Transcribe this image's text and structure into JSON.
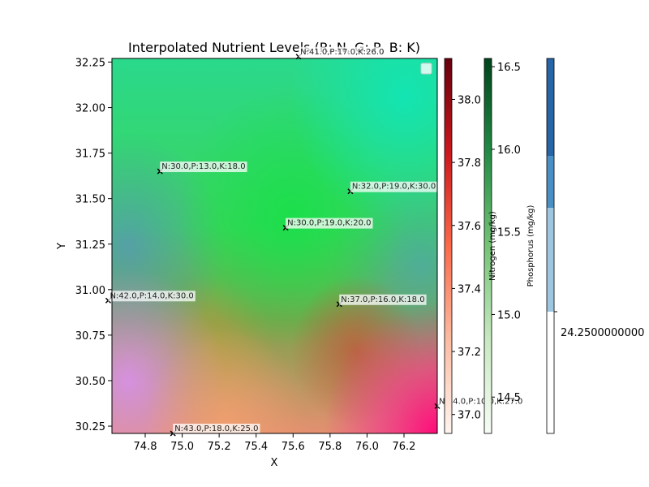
{
  "chart_data": {
    "type": "heatmap",
    "title": "Interpolated Nutrient Levels (R: N, G: P, B: K)",
    "xlabel": "X",
    "ylabel": "Y",
    "xlim": [
      74.62,
      76.38
    ],
    "ylim": [
      30.21,
      32.27
    ],
    "x_ticks": [
      "74.8",
      "75.0",
      "75.2",
      "75.4",
      "75.6",
      "75.8",
      "76.0",
      "76.2"
    ],
    "y_ticks": [
      "30.25",
      "30.50",
      "30.75",
      "31.00",
      "31.25",
      "31.50",
      "31.75",
      "32.00",
      "32.25"
    ],
    "points": [
      {
        "x": 75.63,
        "y": 32.28,
        "label": "N:41.0,P:17.0,K:26.0"
      },
      {
        "x": 74.88,
        "y": 31.65,
        "label": "N:30.0,P:13.0,K:18.0"
      },
      {
        "x": 75.91,
        "y": 31.54,
        "label": "N:32.0,P:19.0,K:30.0"
      },
      {
        "x": 75.56,
        "y": 31.34,
        "label": "N:30.0,P:19.0,K:20.0"
      },
      {
        "x": 74.6,
        "y": 30.94,
        "label": "N:42.0,P:14.0,K:30.0"
      },
      {
        "x": 75.85,
        "y": 30.92,
        "label": "N:37.0,P:16.0,K:18.0"
      },
      {
        "x": 76.38,
        "y": 30.36,
        "label": "N:44.0,P:10.0,K:27.0"
      },
      {
        "x": 74.95,
        "y": 30.21,
        "label": "N:43.0,P:18.0,K:25.0"
      }
    ],
    "colorbars": [
      {
        "name": "Nitrogen",
        "label": "",
        "range": [
          36.94,
          38.13
        ],
        "ticks": [
          "37.0",
          "37.2",
          "37.4",
          "37.6",
          "37.8",
          "38.0"
        ],
        "colormap": "Reds"
      },
      {
        "name": "Phosphorus",
        "label": "Nitrogen (mg/kg)",
        "range": [
          14.28,
          16.55
        ],
        "ticks": [
          "14.5",
          "15.0",
          "15.5",
          "16.0",
          "16.5"
        ],
        "colormap": "Greens"
      },
      {
        "name": "Potassium",
        "label": "Phosphorus (mg/kg)",
        "ticks": [
          "24.2500000000"
        ],
        "colormap": "Blues"
      }
    ]
  }
}
